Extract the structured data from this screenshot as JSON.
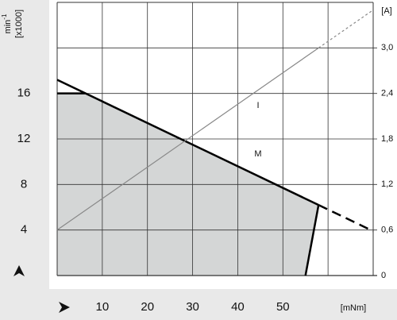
{
  "chart_data": {
    "type": "line",
    "xlabel": "[mNm]",
    "ylabel_unit": "min",
    "ylabel_exp": "-1",
    "ylabel_scale": "[x1000]",
    "y2label": "[A]",
    "xlim": [
      0,
      70
    ],
    "xticks": [
      10,
      20,
      30,
      40,
      50
    ],
    "ylim": [
      0,
      24
    ],
    "yticks": [
      4,
      8,
      12,
      16
    ],
    "y2lim": [
      0,
      3.6
    ],
    "y2ticks": [
      0,
      {
        "value": 0.6,
        "label": "0,6"
      },
      {
        "value": 1.2,
        "label": "1,2"
      },
      {
        "value": 1.8,
        "label": "1,8"
      },
      {
        "value": 2.4,
        "label": "2,4"
      },
      {
        "value": 3.0,
        "label": "3,0"
      }
    ],
    "grid": true,
    "series": [
      {
        "name": "M",
        "color": "#000000",
        "x": [
          0,
          57.9,
          70
        ],
        "values": [
          17.2,
          6.2,
          3.9
        ],
        "segment_styles": [
          "solid",
          "dashed"
        ]
      },
      {
        "name": "I",
        "color": "#888888",
        "axis": "y2",
        "x": [
          0,
          57.9,
          70
        ],
        "values": [
          0.6,
          3.0,
          3.5
        ],
        "segment_styles": [
          "solid",
          "dotted"
        ]
      }
    ],
    "operating_area": {
      "color": "#d4d6d6",
      "x": [
        0,
        6.3,
        57.9,
        55
      ],
      "values": [
        16,
        16,
        6.2,
        0
      ]
    }
  }
}
